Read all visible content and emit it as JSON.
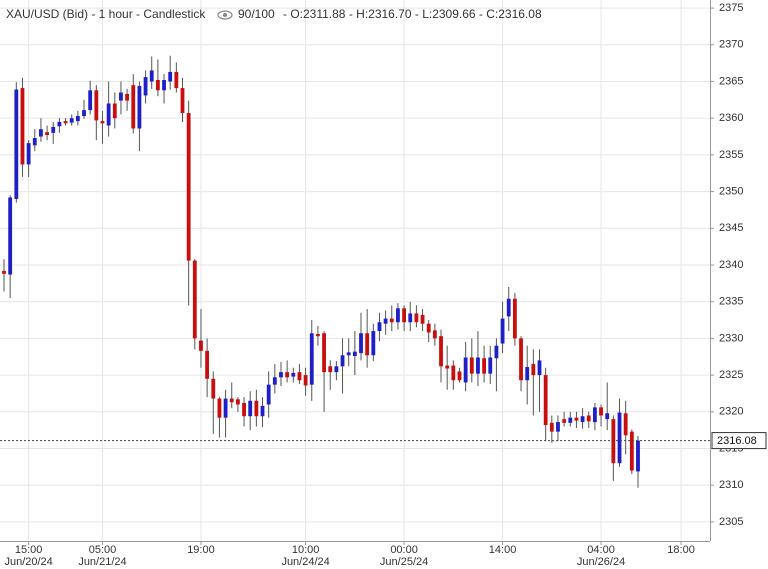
{
  "chart_data": {
    "type": "candlestick",
    "title": "XAU/USD (Bid) - 1 hour - Candlestick",
    "visible_count": "90/100",
    "ohlc_text": "- O:2311.88 - H:2316.70 - L:2309.66 - C:2316.08",
    "up_color": "#1f1fc8",
    "down_color": "#c80f0f",
    "wick_color": "#555555",
    "grid": true,
    "ylim": [
      2302.4,
      2376.1
    ],
    "yticks": [
      2305,
      2310,
      2315,
      2320,
      2325,
      2330,
      2335,
      2340,
      2345,
      2350,
      2355,
      2360,
      2365,
      2370,
      2375
    ],
    "xlim": [
      -0.65,
      114.7
    ],
    "xticks": [
      {
        "value": 4,
        "label": "15:00",
        "date": "Jun/20/24"
      },
      {
        "value": 16,
        "label": "05:00",
        "date": "Jun/21/24"
      },
      {
        "value": 32,
        "label": "19:00"
      },
      {
        "value": 49,
        "label": "10:00",
        "date": "Jun/24/24"
      },
      {
        "value": 65,
        "label": "00:00",
        "date": "Jun/25/24"
      },
      {
        "value": 81,
        "label": "14:00"
      },
      {
        "value": 97,
        "label": "04:00",
        "date": "Jun/26/24"
      },
      {
        "value": 110,
        "label": "18:00"
      }
    ],
    "last_price": 2316.08,
    "open": [
      2339.2,
      2338.7,
      2349.0,
      2364.1,
      2353.7,
      2356.3,
      2357.5,
      2358.1,
      2358.0,
      2358.9,
      2359.6,
      2359.4,
      2359.6,
      2360.3,
      2361.1,
      2363.8,
      2359.6,
      2359.0,
      2362.0,
      2362.4,
      2363.3,
      2364.5,
      2358.6,
      2363.1,
      2365.0,
      2365.2,
      2363.8,
      2365.0,
      2366.3,
      2364.1,
      2360.7,
      2340.6,
      2329.7,
      2328.3,
      2324.5,
      2321.8,
      2319.2,
      2321.8,
      2321.7,
      2321.2,
      2319.4,
      2321.5,
      2319.4,
      2321.0,
      2323.7,
      2324.7,
      2325.4,
      2324.8,
      2325.4,
      2325.0,
      2323.7,
      2330.6,
      2330.7,
      2326.2,
      2325.4,
      2326.2,
      2327.7,
      2327.6,
      2328.0,
      2330.7,
      2327.7,
      2331.0,
      2332.0,
      2332.7,
      2332.2,
      2334.1,
      2332.2,
      2333.4,
      2333.2,
      2332.0,
      2331.1,
      2330.3,
      2326.3,
      2326.3,
      2325.5,
      2324.0,
      2327.4,
      2325.2,
      2327.3,
      2325.2,
      2327.3,
      2329.3,
      2333.0,
      2335.4,
      2330.0,
      2324.3,
      2326.5,
      2325.0,
      2325.0,
      2318.5,
      2317.3,
      2319.0,
      2318.5,
      2319.2,
      2318.6,
      2319.5,
      2318.6,
      2320.6,
      2319.0,
      2319.0,
      2313.0,
      2319.8,
      2317.3,
      2311.88
    ],
    "high": [
      2340.8,
      2349.5,
      2364.9,
      2365.5,
      2357.0,
      2358.5,
      2360.0,
      2359.0,
      2359.5,
      2360.0,
      2360.0,
      2360.5,
      2361.0,
      2362.5,
      2365.1,
      2364.5,
      2361.0,
      2365.0,
      2363.5,
      2365.0,
      2364.0,
      2366.0,
      2365.0,
      2366.5,
      2368.4,
      2368.0,
      2366.0,
      2368.5,
      2367.6,
      2365.5,
      2362.4,
      2340.8,
      2334.0,
      2330.0,
      2325.5,
      2322.0,
      2323.0,
      2324.0,
      2322.0,
      2322.0,
      2322.8,
      2323.0,
      2322.0,
      2325.5,
      2326.5,
      2326.8,
      2327.0,
      2326.0,
      2326.5,
      2326.0,
      2332.5,
      2331.7,
      2331.0,
      2327.0,
      2326.9,
      2330.0,
      2330.0,
      2331.0,
      2333.5,
      2334.0,
      2332.0,
      2333.5,
      2333.8,
      2334.5,
      2334.8,
      2334.5,
      2335.0,
      2334.5,
      2334.0,
      2332.5,
      2332.0,
      2331.2,
      2329.0,
      2327.0,
      2326.0,
      2329.5,
      2330.0,
      2331.0,
      2329.0,
      2329.0,
      2330.0,
      2335.0,
      2337.0,
      2336.2,
      2330.3,
      2329.0,
      2328.5,
      2328.5,
      2326.0,
      2319.5,
      2319.5,
      2320.0,
      2320.0,
      2320.0,
      2320.5,
      2320.0,
      2321.2,
      2321.0,
      2324.0,
      2319.5,
      2321.8,
      2321.5,
      2317.6,
      2316.7
    ],
    "low": [
      2336.4,
      2335.5,
      2348.5,
      2352.0,
      2352.0,
      2355.5,
      2356.8,
      2357.0,
      2356.5,
      2358.0,
      2359.0,
      2359.0,
      2359.0,
      2359.9,
      2360.5,
      2357.0,
      2356.5,
      2357.5,
      2358.6,
      2360.5,
      2361.0,
      2357.9,
      2355.5,
      2362.0,
      2364.0,
      2363.0,
      2362.0,
      2363.9,
      2363.5,
      2359.5,
      2334.5,
      2328.5,
      2326.0,
      2322.0,
      2317.0,
      2316.5,
      2316.5,
      2320.5,
      2320.0,
      2318.0,
      2317.5,
      2318.0,
      2317.9,
      2319.2,
      2322.5,
      2323.5,
      2324.0,
      2324.0,
      2323.8,
      2322.2,
      2321.5,
      2329.0,
      2320.0,
      2323.0,
      2324.3,
      2322.5,
      2326.2,
      2325.0,
      2327.0,
      2326.0,
      2326.9,
      2329.6,
      2330.5,
      2331.0,
      2331.2,
      2331.0,
      2331.0,
      2331.5,
      2331.0,
      2329.5,
      2329.0,
      2324.0,
      2323.0,
      2323.0,
      2324.0,
      2322.8,
      2324.0,
      2323.5,
      2324.0,
      2323.8,
      2322.8,
      2328.0,
      2331.0,
      2329.0,
      2322.8,
      2321.0,
      2319.5,
      2320.0,
      2316.0,
      2315.8,
      2316.0,
      2318.0,
      2318.0,
      2317.8,
      2317.7,
      2317.8,
      2317.5,
      2318.0,
      2317.5,
      2310.6,
      2312.5,
      2314.2,
      2311.5,
      2309.66
    ],
    "close": [
      2338.8,
      2349.2,
      2363.9,
      2353.7,
      2356.6,
      2357.3,
      2358.5,
      2357.7,
      2358.8,
      2359.5,
      2359.3,
      2360.0,
      2360.3,
      2361.1,
      2363.8,
      2359.7,
      2359.3,
      2362.0,
      2360.0,
      2363.5,
      2362.4,
      2358.6,
      2364.4,
      2365.6,
      2366.5,
      2363.8,
      2365.2,
      2366.3,
      2364.1,
      2360.7,
      2340.6,
      2330.0,
      2328.3,
      2324.5,
      2321.8,
      2319.2,
      2321.8,
      2321.3,
      2321.0,
      2319.4,
      2321.5,
      2319.4,
      2320.8,
      2323.7,
      2324.7,
      2325.4,
      2324.7,
      2325.3,
      2324.3,
      2323.6,
      2330.7,
      2330.3,
      2325.4,
      2325.4,
      2326.2,
      2327.7,
      2328.1,
      2328.2,
      2330.7,
      2327.7,
      2331.0,
      2332.2,
      2332.7,
      2332.2,
      2334.1,
      2332.2,
      2333.4,
      2332.2,
      2332.0,
      2330.8,
      2330.0,
      2326.2,
      2325.9,
      2324.3,
      2324.3,
      2327.4,
      2325.2,
      2327.4,
      2325.2,
      2327.4,
      2329.0,
      2332.7,
      2335.4,
      2330.0,
      2324.3,
      2326.1,
      2325.0,
      2327.0,
      2318.2,
      2317.3,
      2318.6,
      2318.5,
      2319.2,
      2318.8,
      2319.4,
      2318.7,
      2320.6,
      2319.5,
      2319.8,
      2313.0,
      2319.9,
      2316.8,
      2312.0,
      2316.08
    ]
  }
}
